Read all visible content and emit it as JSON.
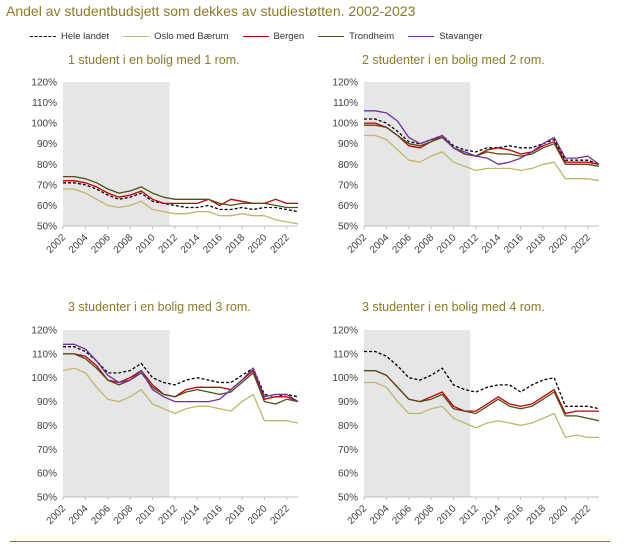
{
  "title": "Andel av studentbudsjett som dekkes av studiestøtten. 2002-2023",
  "colors": {
    "title": "#8c7b26",
    "shade": "#e6e6e6",
    "axis": "#bfbfbf",
    "tick_text": "#404040"
  },
  "chart_data": [
    {
      "type": "line",
      "title": "1 student i en bolig med 1 rom.",
      "x": [
        2002,
        2003,
        2004,
        2005,
        2006,
        2007,
        2008,
        2009,
        2010,
        2011,
        2012,
        2013,
        2014,
        2015,
        2016,
        2017,
        2018,
        2019,
        2020,
        2021,
        2022,
        2023
      ],
      "xticks": [
        2002,
        2004,
        2006,
        2008,
        2010,
        2012,
        2014,
        2016,
        2018,
        2020,
        2022
      ],
      "ylim": [
        50,
        120
      ],
      "yticks": [
        50,
        60,
        70,
        80,
        90,
        100,
        110,
        120
      ],
      "ytick_suffix": "%",
      "shaded_x": [
        2002,
        2011.5
      ],
      "series": [
        {
          "name": "Hele landet",
          "color": "#000000",
          "dash": "3,2",
          "values": [
            71,
            71,
            70,
            68,
            65,
            63,
            64,
            66,
            62,
            61,
            60,
            59,
            59,
            60,
            58,
            58,
            59,
            58,
            59,
            59,
            58,
            57
          ]
        },
        {
          "name": "Oslo med Bærum",
          "color": "#bdb76b",
          "values": [
            68,
            68,
            66,
            63,
            60,
            59,
            60,
            62,
            58,
            57,
            56,
            56,
            57,
            57,
            55,
            55,
            56,
            55,
            55,
            53,
            52,
            51
          ]
        },
        {
          "name": "Bergen",
          "color": "#c00000",
          "values": [
            72,
            72,
            71,
            69,
            66,
            64,
            65,
            67,
            63,
            61,
            61,
            61,
            61,
            63,
            60,
            63,
            62,
            61,
            61,
            63,
            61,
            61
          ]
        },
        {
          "name": "Trondheim",
          "color": "#4f4f19",
          "values": [
            74,
            74,
            73,
            71,
            68,
            66,
            67,
            69,
            66,
            64,
            63,
            63,
            63,
            63,
            61,
            60,
            61,
            61,
            61,
            60,
            59,
            59
          ]
        }
      ]
    },
    {
      "type": "line",
      "title": "2 studenter i en bolig med 2 rom.",
      "x": [
        2002,
        2003,
        2004,
        2005,
        2006,
        2007,
        2008,
        2009,
        2010,
        2011,
        2012,
        2013,
        2014,
        2015,
        2016,
        2017,
        2018,
        2019,
        2020,
        2021,
        2022,
        2023
      ],
      "xticks": [
        2002,
        2004,
        2006,
        2008,
        2010,
        2012,
        2014,
        2016,
        2018,
        2020,
        2022
      ],
      "ylim": [
        50,
        120
      ],
      "yticks": [
        50,
        60,
        70,
        80,
        90,
        100,
        110,
        120
      ],
      "ytick_suffix": "%",
      "shaded_x": [
        2002,
        2011.5
      ],
      "series": [
        {
          "name": "Hele landet",
          "color": "#000000",
          "dash": "3,2",
          "values": [
            102,
            102,
            100,
            96,
            91,
            90,
            92,
            94,
            89,
            87,
            86,
            88,
            88,
            89,
            88,
            88,
            90,
            92,
            82,
            82,
            82,
            80
          ]
        },
        {
          "name": "Oslo med Bærum",
          "color": "#bdb76b",
          "values": [
            94,
            94,
            92,
            87,
            82,
            81,
            84,
            86,
            81,
            79,
            77,
            78,
            78,
            78,
            77,
            78,
            80,
            81,
            73,
            73,
            73,
            72
          ]
        },
        {
          "name": "Bergen",
          "color": "#c00000",
          "values": [
            100,
            100,
            98,
            94,
            89,
            88,
            91,
            94,
            88,
            85,
            84,
            87,
            88,
            87,
            85,
            86,
            89,
            91,
            81,
            81,
            81,
            80
          ]
        },
        {
          "name": "Trondheim",
          "color": "#4f4f19",
          "values": [
            99,
            99,
            98,
            94,
            90,
            89,
            91,
            93,
            88,
            85,
            84,
            86,
            85,
            85,
            84,
            85,
            88,
            90,
            80,
            80,
            80,
            79
          ]
        },
        {
          "name": "Stavanger",
          "color": "#7030a0",
          "values": [
            106,
            106,
            105,
            101,
            93,
            90,
            92,
            94,
            88,
            86,
            84,
            83,
            80,
            81,
            83,
            86,
            90,
            93,
            83,
            83,
            84,
            80
          ]
        }
      ]
    },
    {
      "type": "line",
      "title": "3 studenter i en bolig med 3 rom.",
      "x": [
        2002,
        2003,
        2004,
        2005,
        2006,
        2007,
        2008,
        2009,
        2010,
        2011,
        2012,
        2013,
        2014,
        2015,
        2016,
        2017,
        2018,
        2019,
        2020,
        2021,
        2022,
        2023
      ],
      "xticks": [
        2002,
        2004,
        2006,
        2008,
        2010,
        2012,
        2014,
        2016,
        2018,
        2020,
        2022
      ],
      "ylim": [
        50,
        120
      ],
      "yticks": [
        50,
        60,
        70,
        80,
        90,
        100,
        110,
        120
      ],
      "ytick_suffix": "%",
      "shaded_x": [
        2002,
        2011.5
      ],
      "series": [
        {
          "name": "Hele landet",
          "color": "#000000",
          "dash": "3,2",
          "values": [
            113,
            113,
            111,
            107,
            102,
            102,
            103,
            106,
            100,
            98,
            97,
            99,
            100,
            99,
            98,
            98,
            101,
            104,
            93,
            92,
            93,
            92
          ]
        },
        {
          "name": "Oslo med Bærum",
          "color": "#bdb76b",
          "values": [
            103,
            104,
            102,
            96,
            91,
            90,
            92,
            95,
            89,
            87,
            85,
            87,
            88,
            88,
            87,
            86,
            90,
            93,
            82,
            82,
            82,
            81
          ]
        },
        {
          "name": "Bergen",
          "color": "#c00000",
          "values": [
            110,
            110,
            109,
            105,
            99,
            98,
            100,
            103,
            97,
            93,
            92,
            95,
            96,
            96,
            96,
            95,
            99,
            103,
            91,
            92,
            92,
            90
          ]
        },
        {
          "name": "Trondheim",
          "color": "#4f4f19",
          "values": [
            110,
            110,
            108,
            104,
            99,
            97,
            99,
            102,
            96,
            93,
            92,
            94,
            95,
            94,
            93,
            94,
            98,
            102,
            90,
            89,
            91,
            90
          ]
        },
        {
          "name": "Stavanger",
          "color": "#7030a0",
          "values": [
            114,
            114,
            112,
            107,
            101,
            98,
            99,
            103,
            95,
            92,
            90,
            90,
            90,
            90,
            91,
            95,
            99,
            104,
            92,
            93,
            93,
            90
          ]
        }
      ]
    },
    {
      "type": "line",
      "title": "3 studenter i en bolig med 4 rom.",
      "x": [
        2002,
        2003,
        2004,
        2005,
        2006,
        2007,
        2008,
        2009,
        2010,
        2011,
        2012,
        2013,
        2014,
        2015,
        2016,
        2017,
        2018,
        2019,
        2020,
        2021,
        2022,
        2023
      ],
      "xticks": [
        2002,
        2004,
        2006,
        2008,
        2010,
        2012,
        2014,
        2016,
        2018,
        2020,
        2022
      ],
      "ylim": [
        50,
        120
      ],
      "yticks": [
        50,
        60,
        70,
        80,
        90,
        100,
        110,
        120
      ],
      "ytick_suffix": "%",
      "shaded_x": [
        2002,
        2011.5
      ],
      "series": [
        {
          "name": "Hele landet",
          "color": "#000000",
          "dash": "3,2",
          "values": [
            111,
            111,
            109,
            105,
            100,
            99,
            101,
            104,
            97,
            95,
            94,
            96,
            97,
            97,
            94,
            97,
            99,
            100,
            88,
            88,
            88,
            87
          ]
        },
        {
          "name": "Oslo med Bærum",
          "color": "#bdb76b",
          "values": [
            98,
            98,
            96,
            90,
            85,
            85,
            87,
            88,
            83,
            81,
            79,
            81,
            82,
            81,
            80,
            81,
            83,
            85,
            75,
            76,
            75,
            75
          ]
        },
        {
          "name": "Bergen",
          "color": "#c00000",
          "values": [
            103,
            103,
            101,
            96,
            91,
            90,
            92,
            94,
            88,
            86,
            86,
            89,
            92,
            89,
            88,
            89,
            92,
            95,
            85,
            86,
            86,
            86
          ]
        },
        {
          "name": "Trondheim",
          "color": "#4f4f19",
          "values": [
            103,
            103,
            101,
            96,
            91,
            90,
            91,
            93,
            87,
            86,
            85,
            88,
            91,
            88,
            87,
            88,
            91,
            94,
            84,
            84,
            83,
            82
          ]
        }
      ]
    }
  ],
  "legend": [
    {
      "name": "Hele landet",
      "color": "#000000",
      "dash": true
    },
    {
      "name": "Oslo med Bærum",
      "color": "#bdb76b",
      "dash": false
    },
    {
      "name": "Bergen",
      "color": "#c00000",
      "dash": false
    },
    {
      "name": "Trondheim",
      "color": "#4f4f19",
      "dash": false
    },
    {
      "name": "Stavanger",
      "color": "#7030a0",
      "dash": false
    }
  ]
}
